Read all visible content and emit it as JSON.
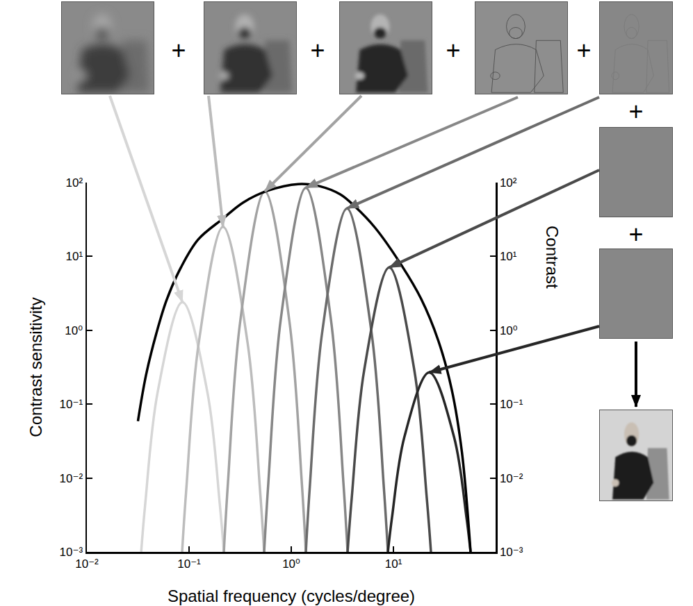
{
  "chart_data": {
    "type": "line",
    "xlabel": "Spatial frequency (cycles/degree)",
    "ylabel": "Contrast sensitivity",
    "y2label": "Contrast",
    "log": true,
    "grid": false,
    "xlim": [
      0.01,
      100
    ],
    "xticks": [
      {
        "value": 0.01,
        "label": "10⁻²"
      },
      {
        "value": 0.1,
        "label": "10⁻¹"
      },
      {
        "value": 1,
        "label": "10⁰"
      },
      {
        "value": 10,
        "label": "10¹"
      }
    ],
    "ylim": [
      0.001,
      100
    ],
    "yticks": [
      {
        "value": 0.001,
        "label": "10⁻³"
      },
      {
        "value": 0.01,
        "label": "10⁻²"
      },
      {
        "value": 0.1,
        "label": "10⁻¹"
      },
      {
        "value": 1,
        "label": "10⁰"
      },
      {
        "value": 10,
        "label": "10¹"
      },
      {
        "value": 100,
        "label": "10²"
      }
    ],
    "y2lim": [
      0.001,
      100
    ],
    "y2ticks": [
      {
        "value": 0.001,
        "label": "10⁻³"
      },
      {
        "value": 0.01,
        "label": "10⁻²"
      },
      {
        "value": 0.1,
        "label": "10⁻¹"
      },
      {
        "value": 1,
        "label": "10⁰"
      },
      {
        "value": 10,
        "label": "10¹"
      },
      {
        "value": 100,
        "label": "10²"
      }
    ],
    "annotations": [
      "+",
      "+",
      "+",
      "+",
      "+",
      "+"
    ],
    "series": [
      {
        "color": "#d6d6d6",
        "line_style": "solid",
        "x": [
          0.034,
          0.0372,
          0.0493,
          0.0861,
          0.151,
          0.2,
          0.219
        ],
        "values": [
          0.001,
          0.00439,
          0.146,
          2.4,
          0.146,
          0.00439,
          0.001
        ]
      },
      {
        "color": "#bcbcbc",
        "line_style": "solid",
        "x": [
          0.0855,
          0.0938,
          0.124,
          0.215,
          0.375,
          0.495,
          0.543
        ],
        "values": [
          0.001,
          0.00686,
          0.655,
          25.1,
          0.655,
          0.00686,
          0.001
        ]
      },
      {
        "color": "#a2a2a2",
        "line_style": "solid",
        "x": [
          0.219,
          0.24,
          0.317,
          0.551,
          0.959,
          1.27,
          1.39
        ],
        "values": [
          0.001,
          0.00845,
          1.33,
          75.9,
          1.33,
          0.00845,
          0.001
        ]
      },
      {
        "color": "#878787",
        "line_style": "solid",
        "x": [
          0.543,
          0.597,
          0.791,
          1.39,
          2.44,
          3.24,
          3.56
        ],
        "values": [
          0.001,
          0.00865,
          1.43,
          85.1,
          1.43,
          0.00865,
          0.001
        ]
      },
      {
        "color": "#6b6b6b",
        "line_style": "solid",
        "x": [
          1.39,
          1.52,
          2.01,
          3.51,
          6.1,
          8.05,
          8.83
        ],
        "values": [
          0.001,
          0.00764,
          0.946,
          44.7,
          0.946,
          0.00764,
          0.001
        ]
      },
      {
        "color": "#4a4a4a",
        "line_style": "solid",
        "x": [
          3.56,
          3.91,
          5.18,
          9.1,
          16.0,
          21.2,
          23.3
        ],
        "values": [
          0.001,
          0.00538,
          0.291,
          7.08,
          0.291,
          0.00538,
          0.001
        ]
      },
      {
        "color": "#262626",
        "line_style": "solid",
        "x": [
          8.83,
          9.68,
          12.8,
          22.4,
          39.2,
          51.9,
          56.9
        ],
        "values": [
          0.001,
          0.0029,
          0.0359,
          0.269,
          0.0359,
          0.0029,
          0.001
        ]
      },
      {
        "color": "#000000",
        "line_style": "solid",
        "x": [
          0.0316,
          0.038,
          0.0479,
          0.0603,
          0.0832,
          0.123,
          0.214,
          0.339,
          0.589,
          1.17,
          1.91,
          3.02,
          4.17,
          6.61,
          12.0,
          18.6,
          27.5,
          37.2,
          46.8,
          56.9
        ],
        "values": [
          0.0589,
          0.251,
          0.912,
          2.57,
          7.08,
          17.0,
          32.4,
          53.7,
          77.6,
          95.5,
          89.1,
          69.2,
          47.9,
          24.5,
          7.59,
          2.69,
          0.724,
          0.158,
          0.0224,
          0.001
        ]
      }
    ]
  }
}
